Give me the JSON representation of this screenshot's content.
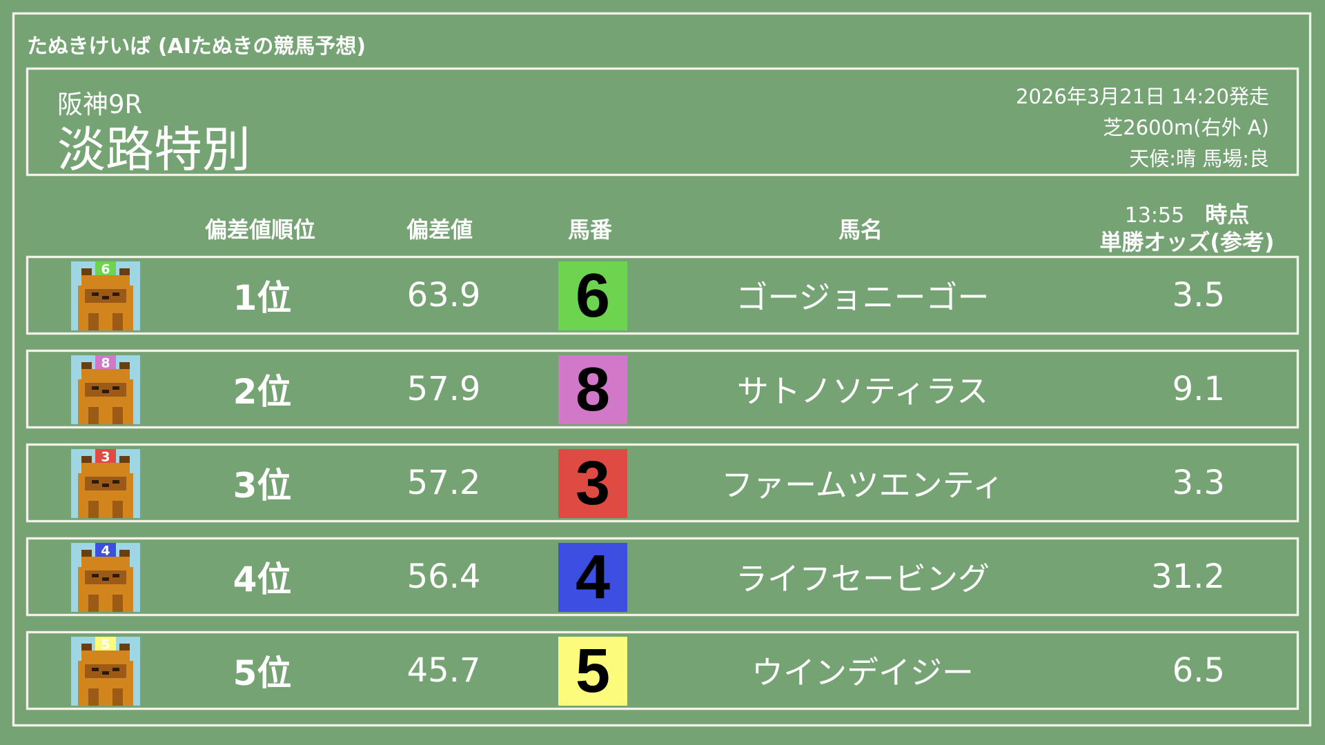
{
  "app_title": "たぬきけいば (AIたぬきの競馬予想)",
  "race": {
    "venue": "阪神9R",
    "name": "淡路特別",
    "datetime": "2026年3月21日 14:20発走",
    "course": "芝2600m(右外 A)",
    "conditions": "天候:晴 馬場:良"
  },
  "columns": {
    "rank": "偏差値順位",
    "deviation": "偏差値",
    "number": "馬番",
    "horse": "馬名",
    "odds_time": "13:55",
    "odds_time_suffix": "時点",
    "odds": "単勝オッズ(参考)"
  },
  "rows": [
    {
      "icon": "tanuki-icon",
      "rank": "1位",
      "deviation": "63.9",
      "number": "6",
      "color": "#6cd44e",
      "horse": "ゴージョニーゴー",
      "odds": "3.5"
    },
    {
      "icon": "tanuki-icon",
      "rank": "2位",
      "deviation": "57.9",
      "number": "8",
      "color": "#d178c8",
      "horse": "サトノソティラス",
      "odds": "9.1"
    },
    {
      "icon": "tanuki-icon",
      "rank": "3位",
      "deviation": "57.2",
      "number": "3",
      "color": "#df4a42",
      "horse": "ファームツエンティ",
      "odds": "3.3"
    },
    {
      "icon": "tanuki-icon",
      "rank": "4位",
      "deviation": "56.4",
      "number": "4",
      "color": "#3d4fe0",
      "horse": "ライフセービング",
      "odds": "31.2"
    },
    {
      "icon": "tanuki-icon",
      "rank": "5位",
      "deviation": "45.7",
      "number": "5",
      "color": "#fdfb7c",
      "horse": "ウインデイジー",
      "odds": "6.5"
    }
  ]
}
